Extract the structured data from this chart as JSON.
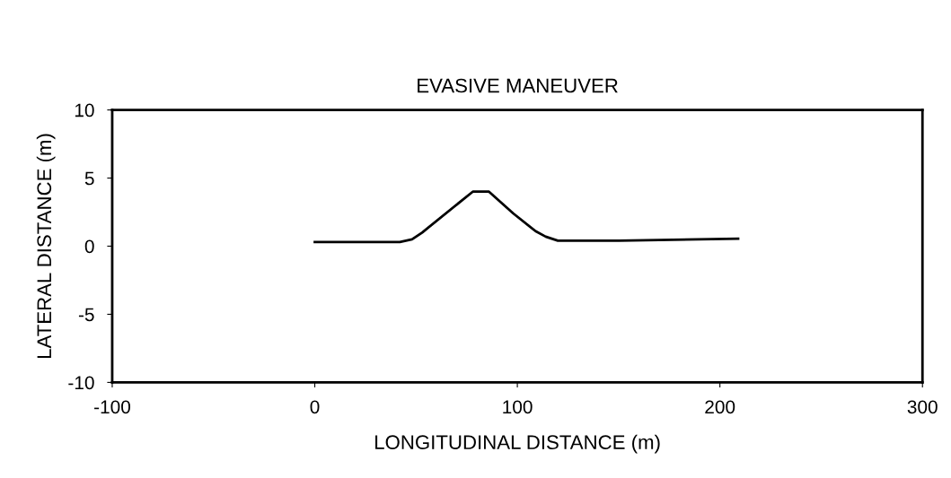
{
  "chart_data": {
    "type": "line",
    "title": "EVASIVE MANEUVER",
    "xlabel": "LONGITUDINAL DISTANCE (m)",
    "ylabel": "LATERAL DISTANCE (m)",
    "x": [
      0,
      42,
      48,
      53,
      78,
      86,
      98,
      109,
      114,
      120,
      150,
      209
    ],
    "series": [
      {
        "color": "#000000",
        "values": [
          0.3,
          0.3,
          0.5,
          1.0,
          4.0,
          4.0,
          2.4,
          1.1,
          0.7,
          0.4,
          0.4,
          0.55
        ]
      }
    ],
    "xlim": [
      -100,
      300
    ],
    "xticks": [
      -100,
      0,
      100,
      200,
      300
    ],
    "ylim": [
      -10,
      10
    ],
    "yticks": [
      -10,
      -5,
      0,
      5,
      10
    ],
    "grid": false,
    "legend": false
  }
}
